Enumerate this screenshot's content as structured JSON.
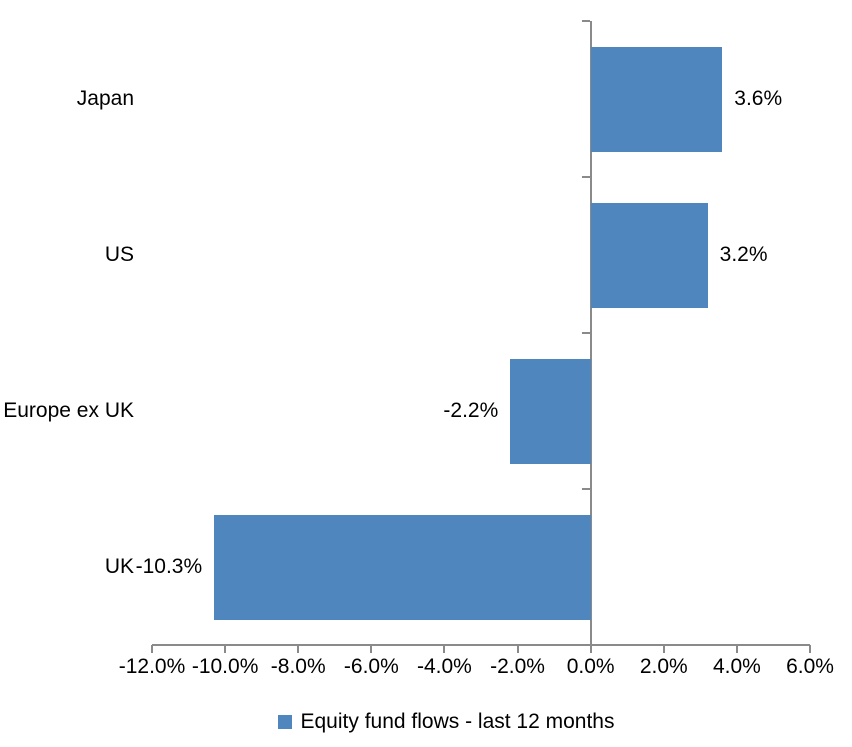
{
  "chart_data": {
    "type": "bar",
    "orientation": "horizontal",
    "title": "",
    "xlabel": "",
    "ylabel": "",
    "series_name": "Equity fund flows - last 12 months",
    "categories": [
      "Japan",
      "US",
      "Europe ex UK",
      "UK"
    ],
    "values": [
      3.6,
      3.2,
      -2.2,
      -10.3
    ],
    "data_labels": [
      "3.6%",
      "3.2%",
      "-2.2%",
      "-10.3%"
    ],
    "xlim": [
      -12,
      6
    ],
    "x_ticks": [
      -12,
      -10,
      -8,
      -6,
      -4,
      -2,
      0,
      2,
      4,
      6
    ],
    "x_tick_labels": [
      "-12.0%",
      "-10.0%",
      "-8.0%",
      "-6.0%",
      "-4.0%",
      "-2.0%",
      "0.0%",
      "2.0%",
      "4.0%",
      "6.0%"
    ],
    "grid": false,
    "legend_position": "bottom",
    "bar_color": "#4e86bd",
    "axis_color": "#8a8a8a",
    "label_color": "#000000"
  }
}
